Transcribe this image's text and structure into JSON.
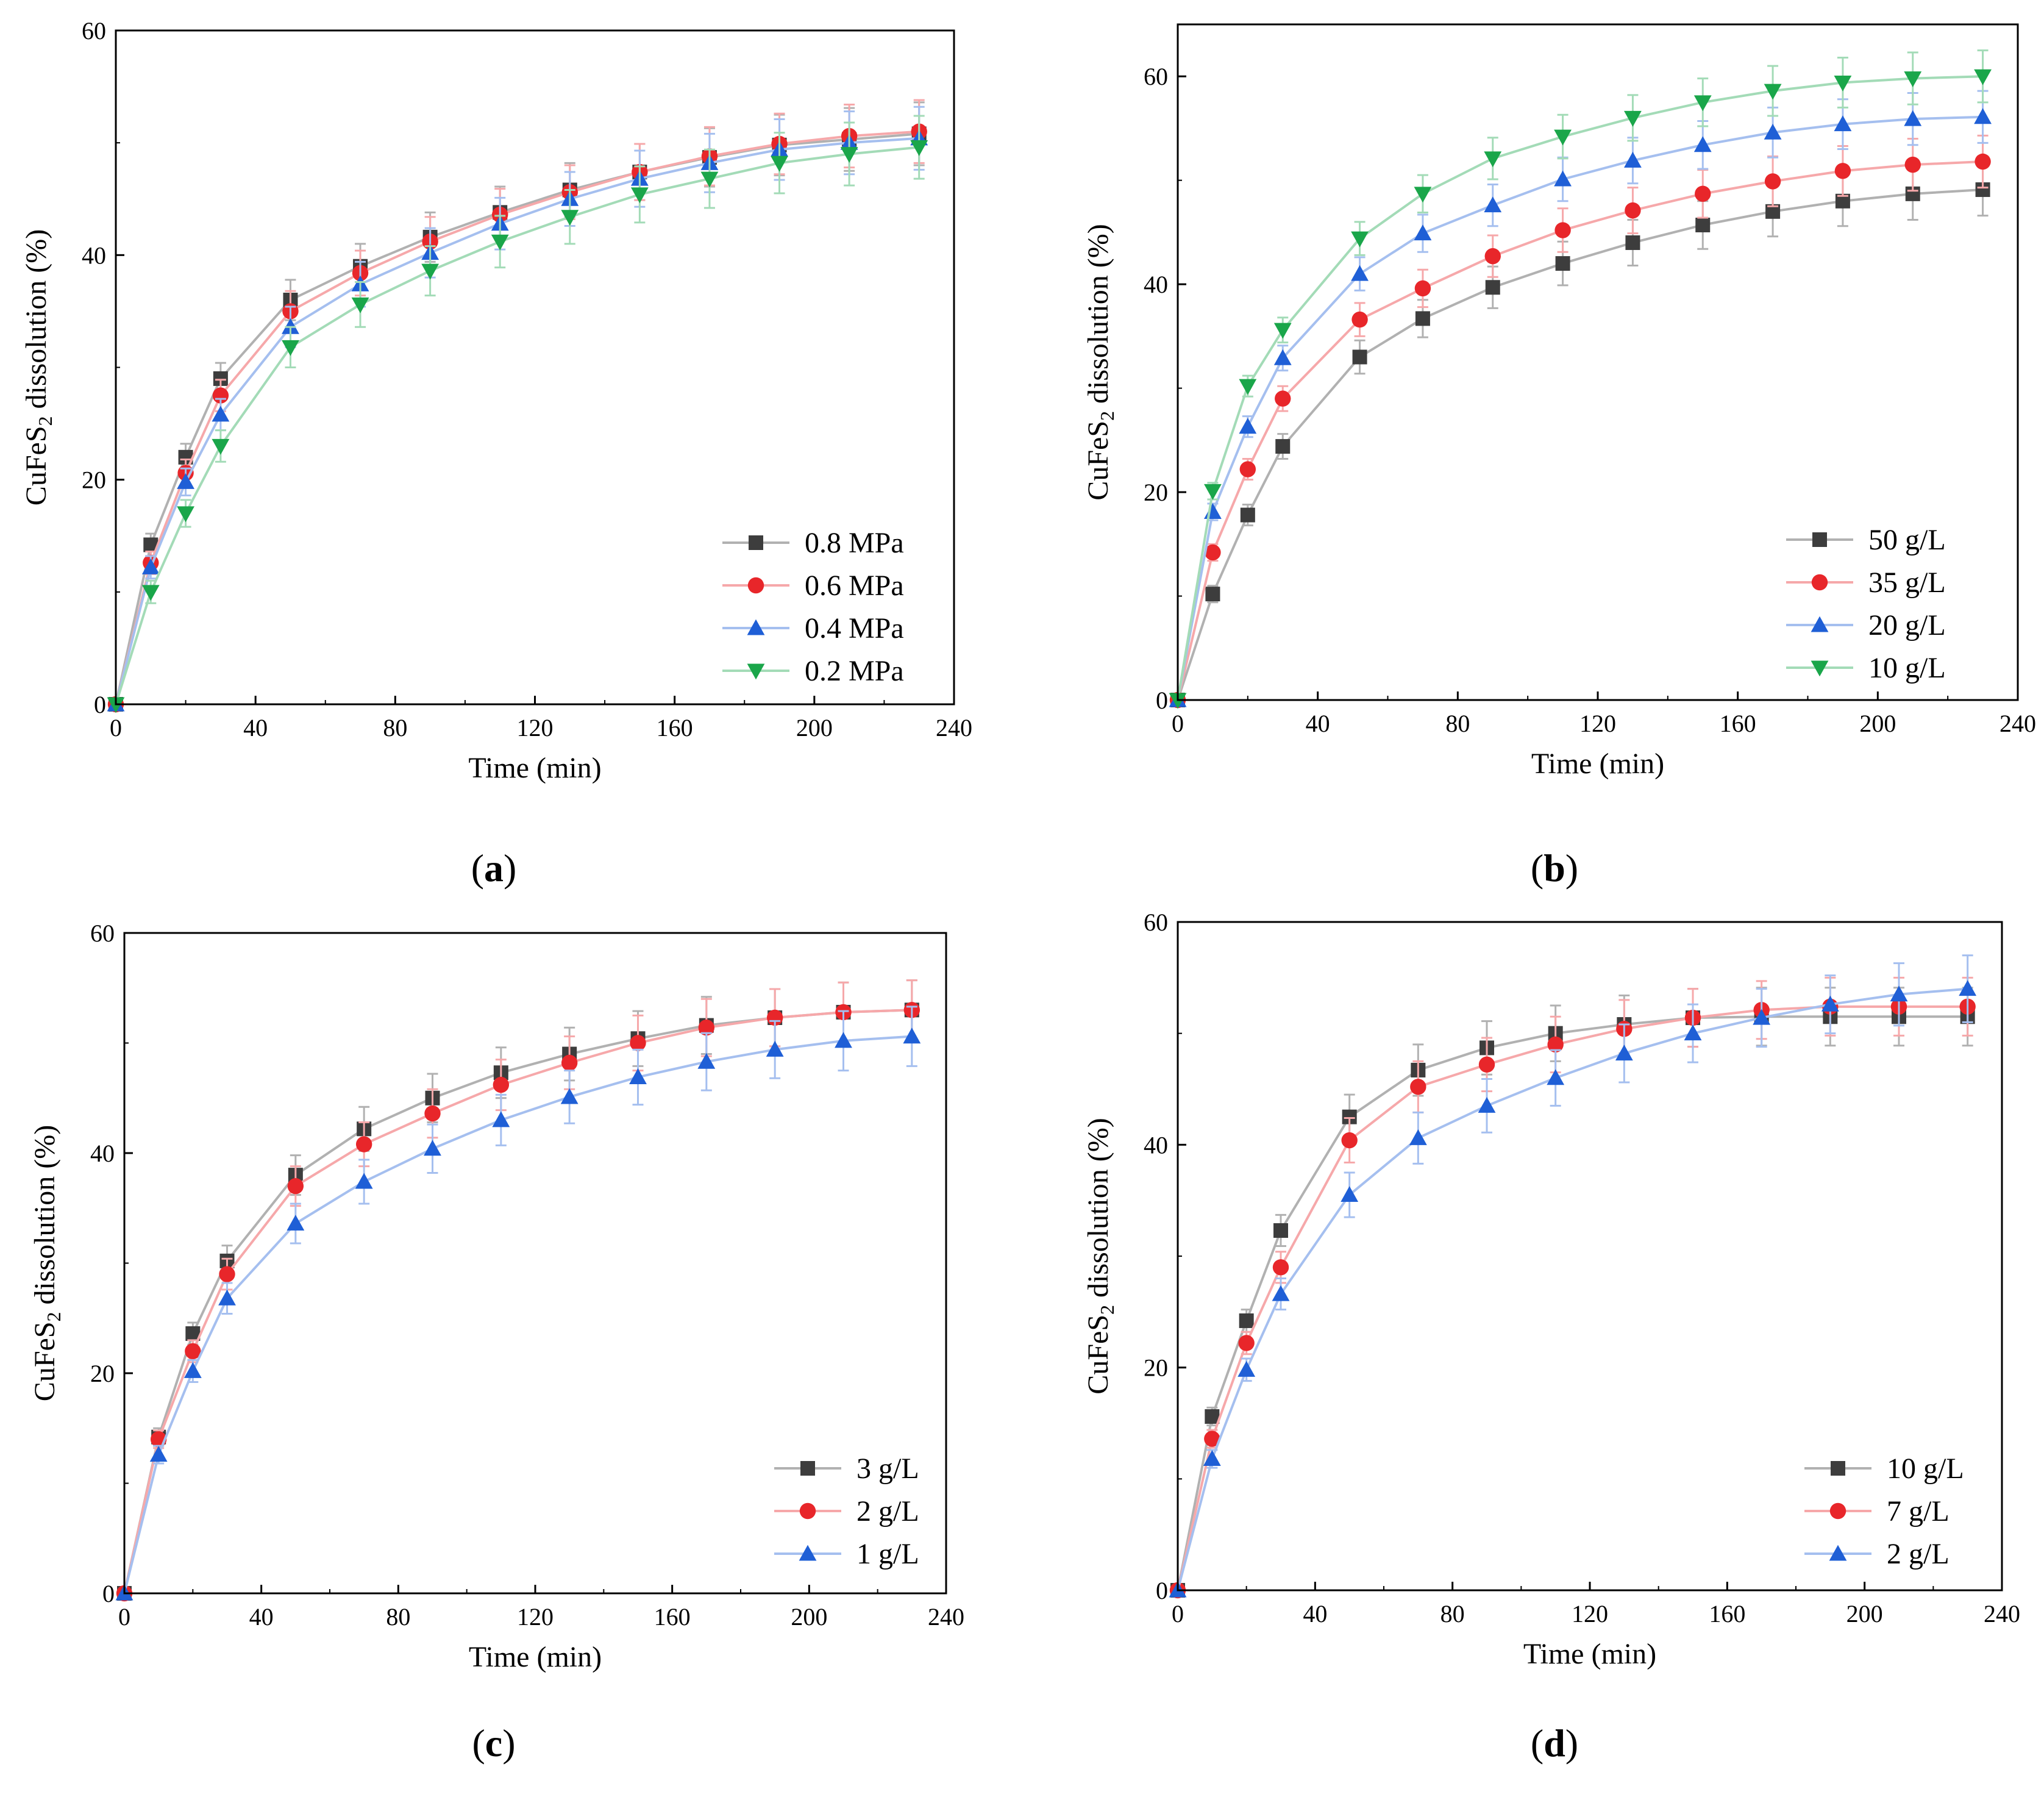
{
  "figure_title": "",
  "colors": {
    "black_series": "#3d3d3d",
    "red_series": "#e8262a",
    "blue_series": "#1f5fd6",
    "green_series": "#1aa64a",
    "frame": "#000000"
  },
  "chart_data": [
    {
      "type": "line",
      "panel": "(a)",
      "xlabel": "Time (min)",
      "ylabel": "CuFeS2 dissolution (%)",
      "ylabel_main": "CuFeS",
      "ylabel_sub": "2",
      "ylabel_rest": " dissolution (%)",
      "xlim": [
        0,
        240
      ],
      "ylim": [
        0,
        60
      ],
      "xticks": [
        0,
        40,
        80,
        120,
        160,
        200,
        240
      ],
      "yticks": [
        0,
        20,
        40,
        60
      ],
      "xtick_labels": [
        "0",
        "40",
        "80",
        "120",
        "160",
        "200",
        "240"
      ],
      "ytick_labels": [
        "0",
        "20",
        "40",
        "60"
      ],
      "legend_position": "bottom-right",
      "x": [
        0,
        10,
        20,
        30,
        50,
        70,
        90,
        110,
        130,
        150,
        170,
        190,
        210,
        230
      ],
      "series": [
        {
          "name": "0.8 MPa",
          "marker": "square",
          "color": "#3d3d3d",
          "values": [
            0,
            14.2,
            22.0,
            29.0,
            36.0,
            39.0,
            41.6,
            43.8,
            45.8,
            47.4,
            48.7,
            49.8,
            50.3,
            50.8
          ],
          "errors": [
            0,
            1.0,
            1.2,
            1.4,
            1.8,
            2.0,
            2.2,
            2.3,
            2.4,
            2.5,
            2.6,
            2.7,
            2.8,
            2.8
          ]
        },
        {
          "name": "0.6 MPa",
          "marker": "circle",
          "color": "#e8262a",
          "values": [
            0,
            12.6,
            20.6,
            27.5,
            35.0,
            38.4,
            41.2,
            43.6,
            45.6,
            47.4,
            48.8,
            49.9,
            50.6,
            51.0
          ],
          "errors": [
            0,
            1.0,
            1.2,
            1.4,
            1.8,
            2.0,
            2.2,
            2.3,
            2.4,
            2.5,
            2.6,
            2.7,
            2.8,
            2.8
          ]
        },
        {
          "name": "0.4 MPa",
          "marker": "triangle-up",
          "color": "#1f5fd6",
          "values": [
            0,
            12.2,
            19.8,
            25.8,
            33.6,
            37.4,
            40.2,
            42.8,
            45.0,
            46.8,
            48.2,
            49.4,
            50.0,
            50.4
          ],
          "errors": [
            0,
            1.0,
            1.2,
            1.4,
            1.8,
            2.0,
            2.2,
            2.3,
            2.4,
            2.5,
            2.6,
            2.7,
            2.8,
            2.8
          ]
        },
        {
          "name": "0.2 MPa",
          "marker": "triangle-down",
          "color": "#1aa64a",
          "values": [
            0,
            10.0,
            17.0,
            23.0,
            31.8,
            35.6,
            38.6,
            41.2,
            43.4,
            45.4,
            46.8,
            48.2,
            49.0,
            49.6
          ],
          "errors": [
            0,
            1.0,
            1.2,
            1.4,
            1.8,
            2.0,
            2.2,
            2.3,
            2.4,
            2.5,
            2.6,
            2.7,
            2.8,
            2.8
          ]
        }
      ]
    },
    {
      "type": "line",
      "panel": "(b)",
      "xlabel": "Time (min)",
      "ylabel": "CuFeS2 dissolution (%)",
      "ylabel_main": "CuFeS",
      "ylabel_sub": "2",
      "ylabel_rest": " dissolution (%)",
      "xlim": [
        0,
        240
      ],
      "ylim": [
        0,
        65
      ],
      "xticks": [
        0,
        40,
        80,
        120,
        160,
        200,
        240
      ],
      "yticks": [
        0,
        20,
        40,
        60
      ],
      "xtick_labels": [
        "0",
        "40",
        "80",
        "120",
        "160",
        "200",
        "240"
      ],
      "ytick_labels": [
        "0",
        "20",
        "40",
        "60"
      ],
      "legend_position": "bottom-right",
      "x": [
        0,
        10,
        20,
        30,
        52,
        70,
        90,
        110,
        130,
        150,
        170,
        190,
        210,
        230
      ],
      "series": [
        {
          "name": "50 g/L",
          "marker": "square",
          "color": "#3d3d3d",
          "values": [
            0,
            10.2,
            17.8,
            24.4,
            33.0,
            36.7,
            39.7,
            42.0,
            44.0,
            45.7,
            47.0,
            48.0,
            48.7,
            49.1
          ],
          "errors": [
            0,
            0.8,
            1.0,
            1.2,
            1.6,
            1.8,
            2.0,
            2.1,
            2.2,
            2.3,
            2.4,
            2.4,
            2.5,
            2.5
          ]
        },
        {
          "name": "35 g/L",
          "marker": "circle",
          "color": "#e8262a",
          "values": [
            0,
            14.2,
            22.2,
            29.0,
            36.6,
            39.6,
            42.7,
            45.2,
            47.1,
            48.7,
            49.9,
            50.9,
            51.5,
            51.8
          ],
          "errors": [
            0,
            0.8,
            1.0,
            1.2,
            1.6,
            1.8,
            2.0,
            2.1,
            2.2,
            2.3,
            2.4,
            2.4,
            2.5,
            2.5
          ]
        },
        {
          "name": "20 g/L",
          "marker": "triangle-up",
          "color": "#1f5fd6",
          "values": [
            0,
            18.1,
            26.3,
            32.9,
            41.0,
            44.9,
            47.6,
            50.1,
            51.9,
            53.4,
            54.6,
            55.4,
            55.9,
            56.1
          ],
          "errors": [
            0,
            0.8,
            1.0,
            1.2,
            1.6,
            1.8,
            2.0,
            2.1,
            2.2,
            2.3,
            2.4,
            2.4,
            2.5,
            2.5
          ]
        },
        {
          "name": "10 g/L",
          "marker": "triangle-down",
          "color": "#1aa64a",
          "values": [
            0,
            20.1,
            30.2,
            35.6,
            44.4,
            48.7,
            52.1,
            54.2,
            56.0,
            57.5,
            58.6,
            59.4,
            59.8,
            60.0
          ],
          "errors": [
            0,
            0.8,
            1.0,
            1.2,
            1.6,
            1.8,
            2.0,
            2.1,
            2.2,
            2.3,
            2.4,
            2.4,
            2.5,
            2.5
          ]
        }
      ]
    },
    {
      "type": "line",
      "panel": "(c)",
      "xlabel": "Time (min)",
      "ylabel": "CuFeS2 dissolution (%)",
      "ylabel_main": "CuFeS",
      "ylabel_sub": "2",
      "ylabel_rest": " dissolution (%)",
      "xlim": [
        0,
        240
      ],
      "ylim": [
        0,
        60
      ],
      "xticks": [
        0,
        40,
        80,
        120,
        160,
        200,
        240
      ],
      "yticks": [
        0,
        20,
        40,
        60
      ],
      "xtick_labels": [
        "0",
        "40",
        "80",
        "120",
        "160",
        "200",
        "240"
      ],
      "ytick_labels": [
        "0",
        "20",
        "40",
        "60"
      ],
      "legend_position": "bottom-right",
      "x": [
        0,
        10,
        20,
        30,
        50,
        70,
        90,
        110,
        130,
        150,
        170,
        190,
        210,
        230
      ],
      "series": [
        {
          "name": "3 g/L",
          "marker": "square",
          "color": "#3d3d3d",
          "values": [
            0,
            14.2,
            23.6,
            30.2,
            38.0,
            42.2,
            45.0,
            47.3,
            49.0,
            50.4,
            51.6,
            52.3,
            52.8,
            53.0
          ],
          "errors": [
            0,
            0.8,
            1.0,
            1.4,
            1.8,
            2.0,
            2.2,
            2.3,
            2.4,
            2.5,
            2.6,
            2.6,
            2.7,
            2.7
          ]
        },
        {
          "name": "2 g/L",
          "marker": "circle",
          "color": "#e8262a",
          "values": [
            0,
            14.0,
            22.0,
            29.0,
            37.0,
            40.8,
            43.6,
            46.2,
            48.2,
            50.0,
            51.4,
            52.3,
            52.8,
            53.0
          ],
          "errors": [
            0,
            0.8,
            1.0,
            1.4,
            1.8,
            2.0,
            2.2,
            2.3,
            2.4,
            2.5,
            2.6,
            2.6,
            2.7,
            2.7
          ]
        },
        {
          "name": "1 g/L",
          "marker": "triangle-up",
          "color": "#1f5fd6",
          "values": [
            0,
            12.6,
            20.2,
            26.8,
            33.6,
            37.4,
            40.4,
            43.0,
            45.1,
            46.9,
            48.3,
            49.4,
            50.2,
            50.6
          ],
          "errors": [
            0,
            0.8,
            1.0,
            1.4,
            1.8,
            2.0,
            2.2,
            2.3,
            2.4,
            2.5,
            2.6,
            2.6,
            2.7,
            2.7
          ]
        }
      ]
    },
    {
      "type": "line",
      "panel": "(d)",
      "xlabel": "Time (min)",
      "ylabel": "CuFeS2 dissolution (%)",
      "ylabel_main": "CuFeS",
      "ylabel_sub": "2",
      "ylabel_rest": " dissolution (%)",
      "xlim": [
        0,
        240
      ],
      "ylim": [
        0,
        60
      ],
      "xticks": [
        0,
        40,
        80,
        120,
        160,
        200,
        240
      ],
      "yticks": [
        0,
        20,
        40,
        60
      ],
      "xtick_labels": [
        "0",
        "40",
        "80",
        "120",
        "160",
        "200",
        "240"
      ],
      "ytick_labels": [
        "0",
        "20",
        "40",
        "60"
      ],
      "legend_position": "bottom-right",
      "x": [
        0,
        10,
        20,
        30,
        50,
        70,
        90,
        110,
        130,
        150,
        170,
        190,
        210,
        230
      ],
      "series": [
        {
          "name": "10 g/L",
          "marker": "square",
          "color": "#3d3d3d",
          "values": [
            0,
            15.6,
            24.2,
            32.3,
            42.5,
            46.7,
            48.7,
            50.0,
            50.8,
            51.4,
            51.5,
            51.5,
            51.5,
            51.5
          ],
          "errors": [
            0,
            0.8,
            1.0,
            1.4,
            2.0,
            2.3,
            2.4,
            2.5,
            2.6,
            2.6,
            2.6,
            2.6,
            2.6,
            2.6
          ]
        },
        {
          "name": "7  g/L",
          "marker": "circle",
          "color": "#e8262a",
          "values": [
            0,
            13.6,
            22.2,
            29.0,
            40.4,
            45.2,
            47.2,
            49.0,
            50.4,
            51.4,
            52.1,
            52.4,
            52.4,
            52.4
          ],
          "errors": [
            0,
            0.8,
            1.0,
            1.4,
            2.0,
            2.3,
            2.4,
            2.5,
            2.6,
            2.6,
            2.6,
            2.6,
            2.6,
            2.6
          ]
        },
        {
          "name": "2  g/L",
          "marker": "triangle-up",
          "color": "#1f5fd6",
          "values": [
            0,
            11.8,
            19.8,
            26.6,
            35.5,
            40.6,
            43.5,
            46.0,
            48.2,
            50.0,
            51.4,
            52.6,
            53.5,
            54.0
          ],
          "errors": [
            0,
            0.8,
            1.0,
            1.4,
            2.0,
            2.3,
            2.4,
            2.5,
            2.6,
            2.6,
            2.6,
            2.6,
            2.8,
            3.0
          ]
        }
      ]
    }
  ]
}
